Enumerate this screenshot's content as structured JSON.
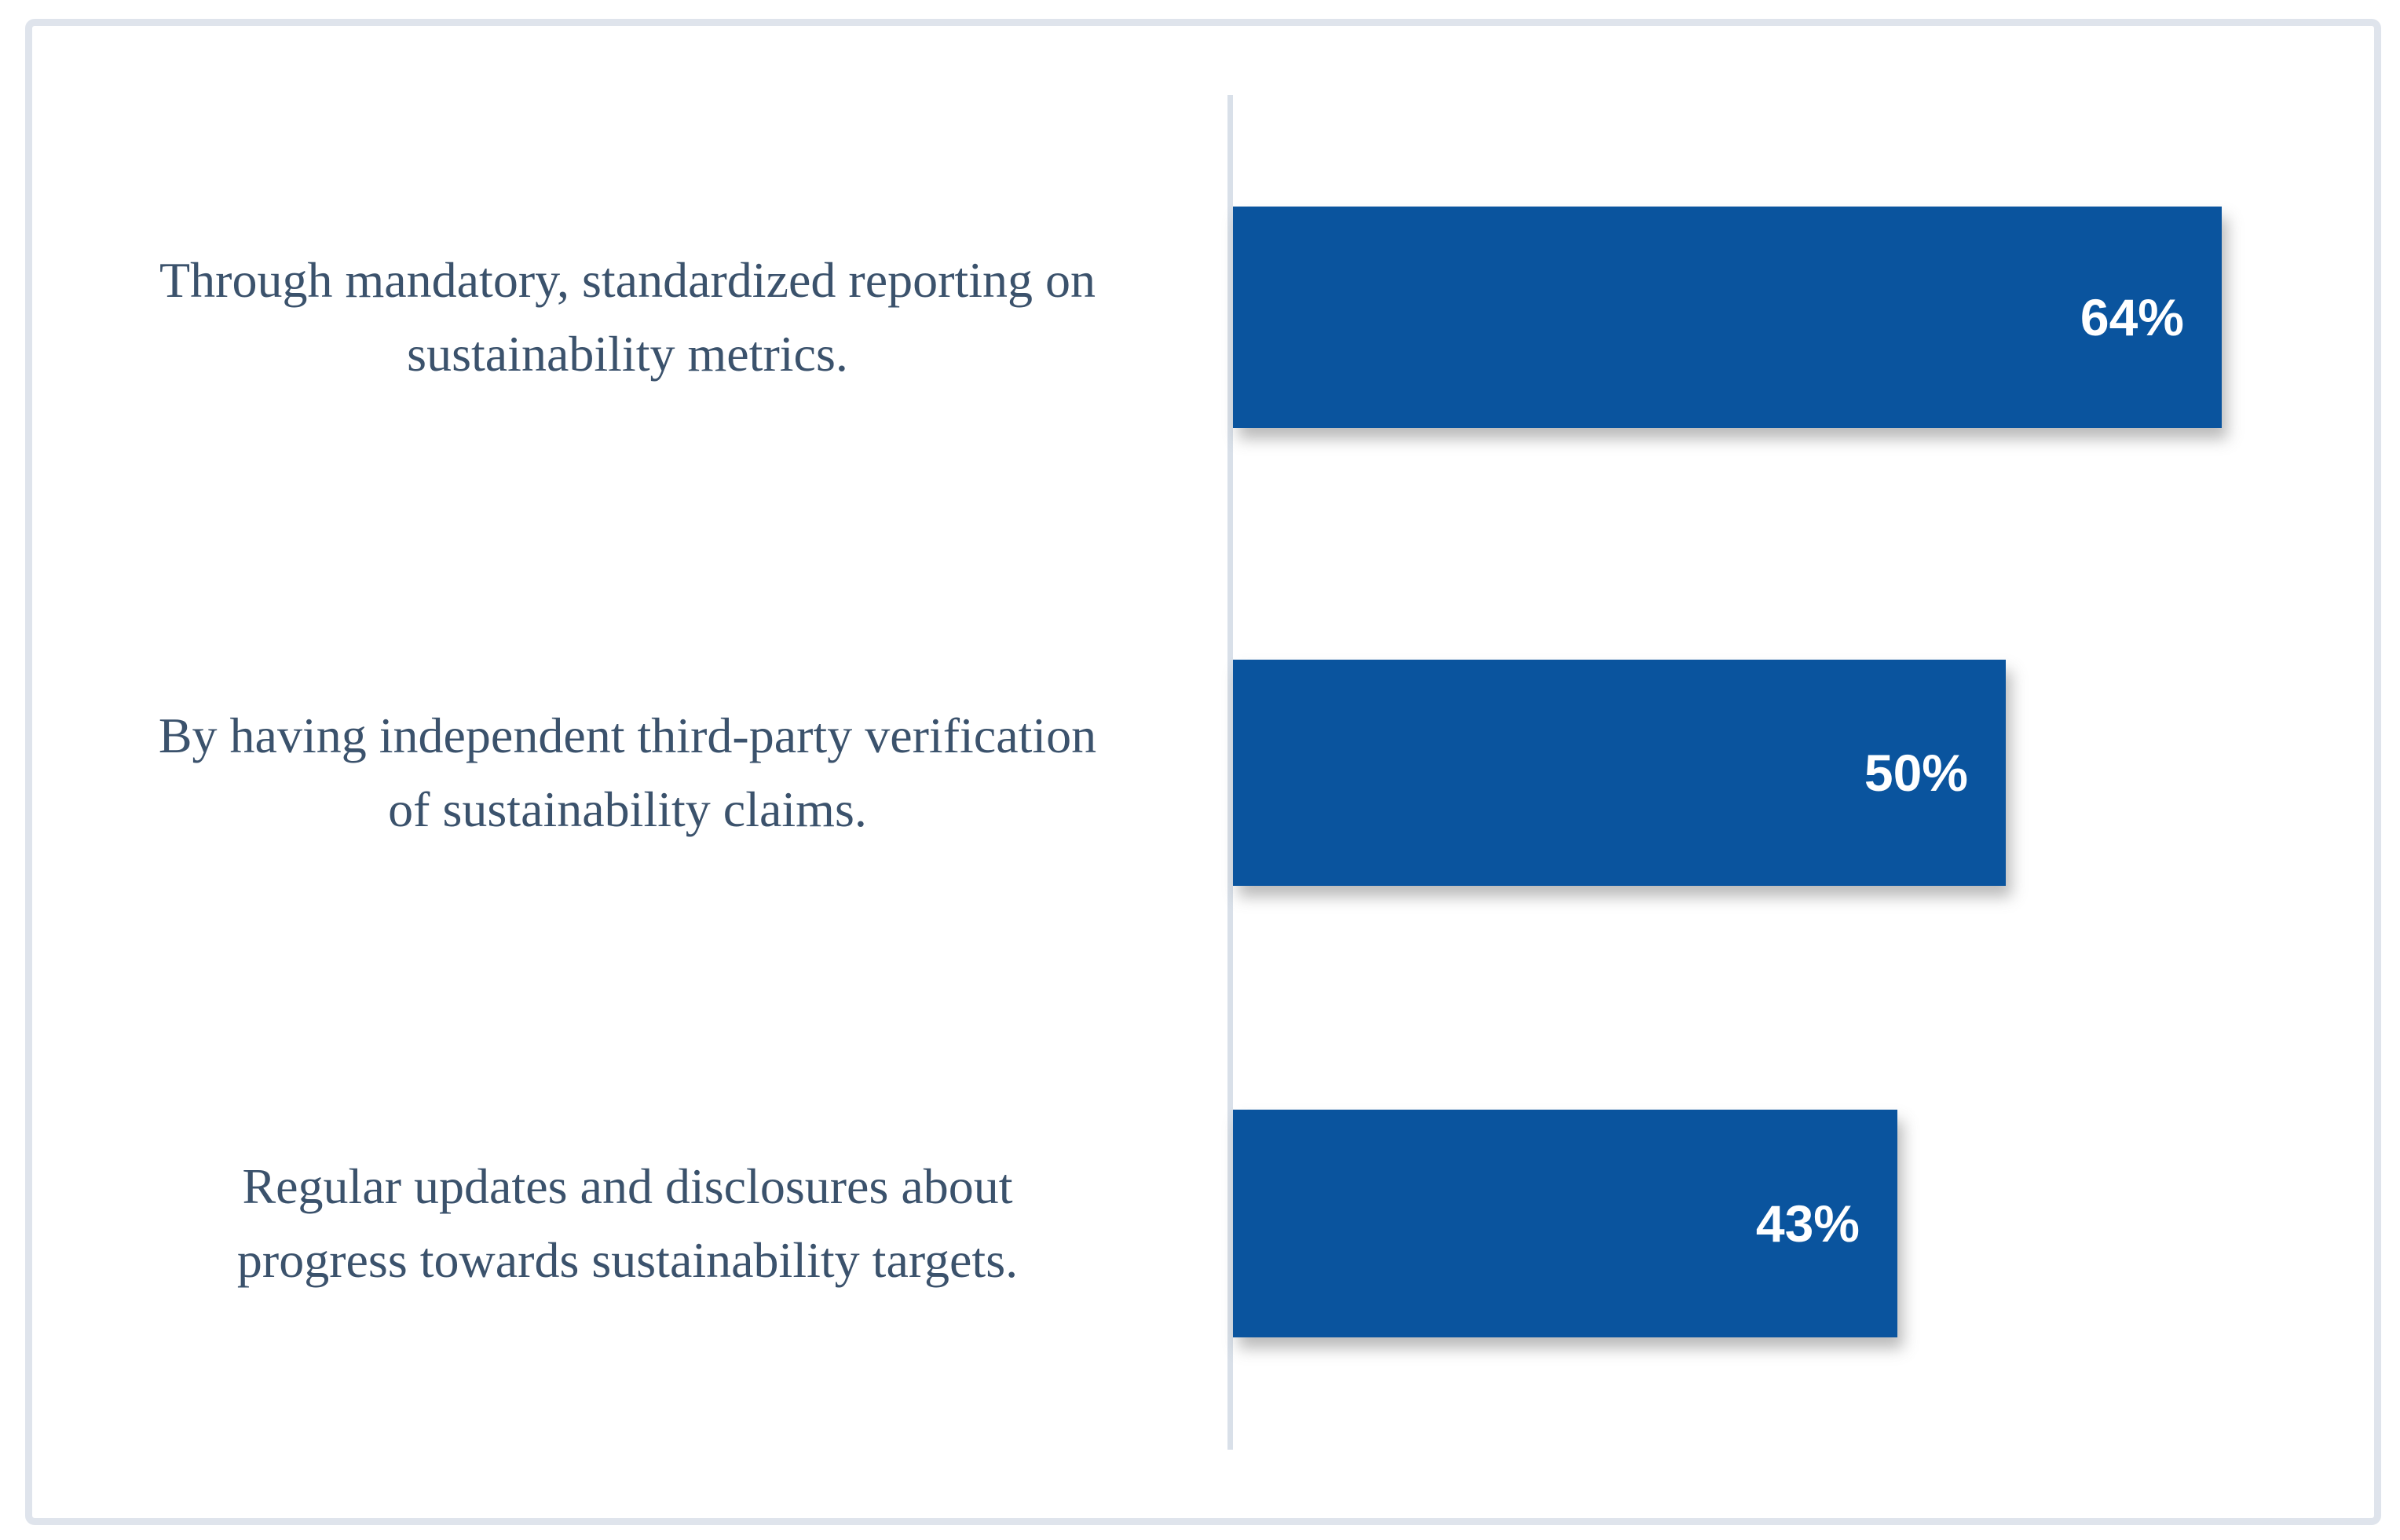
{
  "chart_data": {
    "type": "bar",
    "orientation": "horizontal",
    "title": "",
    "xlabel": "",
    "ylabel": "",
    "categories": [
      "Through mandatory, standardized reporting on sustainability metrics.",
      "By having independent third-party verification of sustainability claims.",
      "Regular updates and disclosures about progress towards sustainability targets."
    ],
    "category_lines": [
      [
        "Through mandatory, standardized reporting on",
        "sustainability metrics."
      ],
      [
        "By having independent third-party verification",
        "of sustainability claims."
      ],
      [
        "Regular updates and disclosures about",
        "progress towards sustainability targets."
      ]
    ],
    "values": [
      64,
      50,
      43
    ],
    "data_labels": [
      "64%",
      "50%",
      "43%"
    ],
    "xlim": [
      0,
      74
    ],
    "grid": false,
    "legend": false,
    "bar_color": "#0a549e",
    "category_label_color": "#3b526c",
    "value_label_color": "#ffffff",
    "axis_line_color": "#d9e0e9",
    "frame_border_color": "#dfe4ec",
    "background_color": "#ffffff"
  }
}
